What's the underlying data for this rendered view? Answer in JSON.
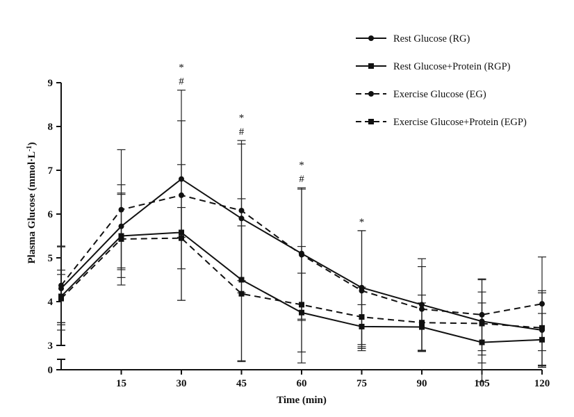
{
  "chart_data": {
    "type": "line",
    "title": "",
    "xlabel": "Time (min)",
    "ylabel_main": "Plasma Glucose (mmol·L",
    "ylabel_sup": "-1",
    "ylabel_close": ")",
    "x": [
      0,
      15,
      30,
      45,
      60,
      75,
      90,
      105,
      120
    ],
    "x_tick_values": [
      15,
      30,
      45,
      60,
      75,
      90,
      105,
      120
    ],
    "x_tick_labels": [
      "15",
      "30",
      "45",
      "60",
      "75",
      "90",
      "105",
      "120"
    ],
    "xlim": [
      0,
      120
    ],
    "y_tick_values": [
      3,
      4,
      5,
      6,
      7,
      8,
      9
    ],
    "y_tick_labels": [
      "3",
      "4",
      "5",
      "6",
      "7",
      "8",
      "9"
    ],
    "y_zero_label": "0",
    "ylim": [
      2,
      9
    ],
    "y_axis_break": true,
    "series": [
      {
        "name": "Rest Glucose (RG)",
        "marker": "circle",
        "dash": "solid",
        "values": [
          4.3,
          5.72,
          6.8,
          5.9,
          5.1,
          4.32,
          3.93,
          3.55,
          3.35
        ],
        "errors": [
          0.95,
          0.95,
          1.33,
          1.7,
          1.5,
          1.3,
          1.05,
          0.95,
          0.85
        ]
      },
      {
        "name": "Rest Glucose+Protein (RGP)",
        "marker": "square",
        "dash": "solid",
        "values": [
          4.12,
          5.5,
          5.58,
          4.5,
          3.75,
          3.43,
          3.42,
          3.07,
          3.13
        ],
        "errors": [
          0.6,
          0.95,
          1.55,
          1.85,
          0.9,
          0.5,
          0.55,
          0.9,
          0.6
        ]
      },
      {
        "name": "Exercise Glucose (EG)",
        "marker": "circle",
        "dash": "dashed",
        "values": [
          4.37,
          6.1,
          6.43,
          6.08,
          5.07,
          4.25,
          3.83,
          3.7,
          3.95
        ],
        "errors": [
          0.9,
          1.37,
          2.4,
          1.6,
          1.5,
          1.37,
          0.97,
          0.82,
          1.07
        ]
      },
      {
        "name": "Exercise Glucose+Protein (EGP)",
        "marker": "square",
        "dash": "dashed",
        "values": [
          4.07,
          5.43,
          5.45,
          4.18,
          3.93,
          3.65,
          3.52,
          3.5,
          3.4
        ],
        "errors": [
          0.55,
          1.05,
          0.7,
          1.55,
          1.33,
          0.68,
          0.63,
          0.72,
          0.85
        ]
      }
    ],
    "annotations": [
      {
        "x": 30,
        "symbols": [
          "*",
          "#"
        ]
      },
      {
        "x": 45,
        "symbols": [
          "*",
          "#"
        ]
      },
      {
        "x": 60,
        "symbols": [
          "*",
          "#"
        ]
      },
      {
        "x": 75,
        "symbols": [
          "*"
        ]
      }
    ],
    "legend_position": "top-right"
  }
}
